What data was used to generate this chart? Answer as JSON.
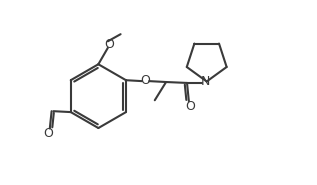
{
  "background_color": "#ffffff",
  "line_color": "#3a3a3a",
  "line_width": 1.5,
  "text_color": "#3a3a3a",
  "font_size": 9.0,
  "fig_width": 3.17,
  "fig_height": 1.85,
  "dpi": 100,
  "xlim": [
    0,
    17
  ],
  "ylim": [
    0,
    10
  ]
}
